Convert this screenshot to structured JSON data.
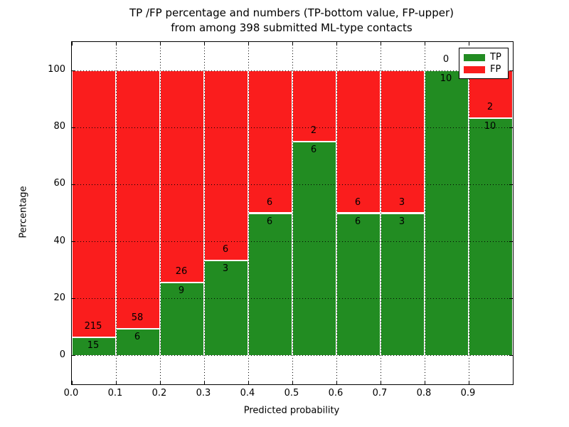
{
  "figure": {
    "title_line1": "TP /FP percentage and numbers (TP-bottom value, FP-upper)",
    "title_line2": "from among 398 submitted ML-type contacts",
    "background_color": "#ffffff"
  },
  "chart_data": {
    "type": "bar",
    "stacked": true,
    "title": "TP /FP percentage and numbers (TP-bottom value, FP-upper) from among 398 submitted ML-type contacts",
    "xlabel": "Predicted probability",
    "ylabel": "Percentage",
    "xlim": [
      0.0,
      1.0
    ],
    "ylim": [
      -10,
      110
    ],
    "grid": true,
    "grid_style": "dotted",
    "bar_width": 0.1,
    "total_contacts": 398,
    "xticks": [
      {
        "value": 0.0,
        "label": "0.0"
      },
      {
        "value": 0.1,
        "label": "0.1"
      },
      {
        "value": 0.2,
        "label": "0.2"
      },
      {
        "value": 0.3,
        "label": "0.3"
      },
      {
        "value": 0.4,
        "label": "0.4"
      },
      {
        "value": 0.5,
        "label": "0.5"
      },
      {
        "value": 0.6,
        "label": "0.6"
      },
      {
        "value": 0.7,
        "label": "0.7"
      },
      {
        "value": 0.8,
        "label": "0.8"
      },
      {
        "value": 0.9,
        "label": "0.9"
      }
    ],
    "yticks": [
      {
        "value": 0,
        "label": "0"
      },
      {
        "value": 20,
        "label": "20"
      },
      {
        "value": 40,
        "label": "40"
      },
      {
        "value": 60,
        "label": "60"
      },
      {
        "value": 80,
        "label": "80"
      },
      {
        "value": 100,
        "label": "100"
      }
    ],
    "series": [
      {
        "name": "TP",
        "color": "#228c22"
      },
      {
        "name": "FP",
        "color": "#fa1d1d"
      }
    ],
    "bins": [
      {
        "x_start": 0.0,
        "x_end": 0.1,
        "tp_count": 15,
        "fp_count": 215,
        "tp_pct": 6.52,
        "fp_pct": 93.48
      },
      {
        "x_start": 0.1,
        "x_end": 0.2,
        "tp_count": 6,
        "fp_count": 58,
        "tp_pct": 9.38,
        "fp_pct": 90.62
      },
      {
        "x_start": 0.2,
        "x_end": 0.3,
        "tp_count": 9,
        "fp_count": 26,
        "tp_pct": 25.71,
        "fp_pct": 74.29
      },
      {
        "x_start": 0.3,
        "x_end": 0.4,
        "tp_count": 3,
        "fp_count": 6,
        "tp_pct": 33.33,
        "fp_pct": 66.67
      },
      {
        "x_start": 0.4,
        "x_end": 0.5,
        "tp_count": 6,
        "fp_count": 6,
        "tp_pct": 50.0,
        "fp_pct": 50.0
      },
      {
        "x_start": 0.5,
        "x_end": 0.6,
        "tp_count": 6,
        "fp_count": 2,
        "tp_pct": 75.0,
        "fp_pct": 25.0
      },
      {
        "x_start": 0.6,
        "x_end": 0.7,
        "tp_count": 6,
        "fp_count": 6,
        "tp_pct": 50.0,
        "fp_pct": 50.0
      },
      {
        "x_start": 0.7,
        "x_end": 0.8,
        "tp_count": 3,
        "fp_count": 3,
        "tp_pct": 50.0,
        "fp_pct": 50.0
      },
      {
        "x_start": 0.8,
        "x_end": 0.9,
        "tp_count": 10,
        "fp_count": 0,
        "tp_pct": 100.0,
        "fp_pct": 0.0
      },
      {
        "x_start": 0.9,
        "x_end": 1.0,
        "tp_count": 10,
        "fp_count": 2,
        "tp_pct": 83.33,
        "fp_pct": 16.67
      }
    ],
    "legend": {
      "position": "upper right",
      "entries": [
        {
          "label": "TP",
          "color": "#228c22"
        },
        {
          "label": "FP",
          "color": "#fa1d1d"
        }
      ]
    }
  }
}
